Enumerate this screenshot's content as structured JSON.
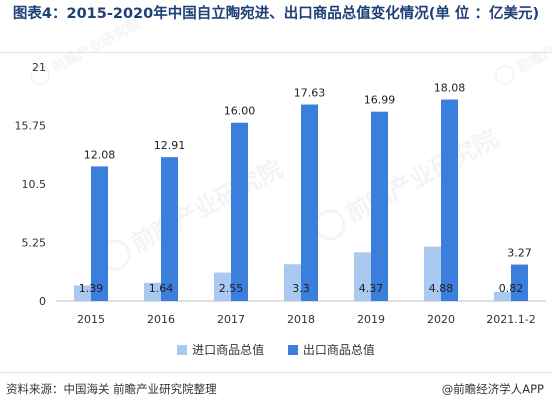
{
  "title": "图表4：2015-2020年中国自立陶宛进、出口商品总值变化情况(单 位 ：亿美元)",
  "colors": {
    "import": "#aac9f0",
    "export": "#3a7fdb",
    "axis": "#bfbfbf",
    "text": "#333333",
    "title": "#1f3f77"
  },
  "chart_data": {
    "type": "bar",
    "categories": [
      "2015",
      "2016",
      "2017",
      "2018",
      "2019",
      "2020",
      "2021.1-2"
    ],
    "series": [
      {
        "name": "进口商品总值",
        "values": [
          1.39,
          1.64,
          2.55,
          3.3,
          4.37,
          4.88,
          0.82
        ],
        "labels": [
          "1.39",
          "1.64",
          "2.55",
          "3.3",
          "4.37",
          "4.88",
          "0.82"
        ]
      },
      {
        "name": "出口商品总值",
        "values": [
          12.08,
          12.91,
          16.0,
          17.63,
          16.99,
          18.08,
          3.27
        ],
        "labels": [
          "12.08",
          "12.91",
          "16.00",
          "17.63",
          "16.99",
          "18.08",
          "3.27"
        ]
      }
    ],
    "ylim": [
      0,
      21
    ],
    "yticks": [
      "0",
      "5.25",
      "10.5",
      "15.75",
      "21"
    ],
    "grid": false,
    "legend_position": "bottom"
  },
  "legend": {
    "import_label": "进口商品总值",
    "export_label": "出口商品总值"
  },
  "footer": {
    "source": "资料来源：中国海关  前瞻产业研究院整理",
    "brand": "@前瞻经济学人APP"
  },
  "watermark": {
    "text": "前瞻产业研究院",
    "icon": "qianzhan-logo-icon"
  }
}
